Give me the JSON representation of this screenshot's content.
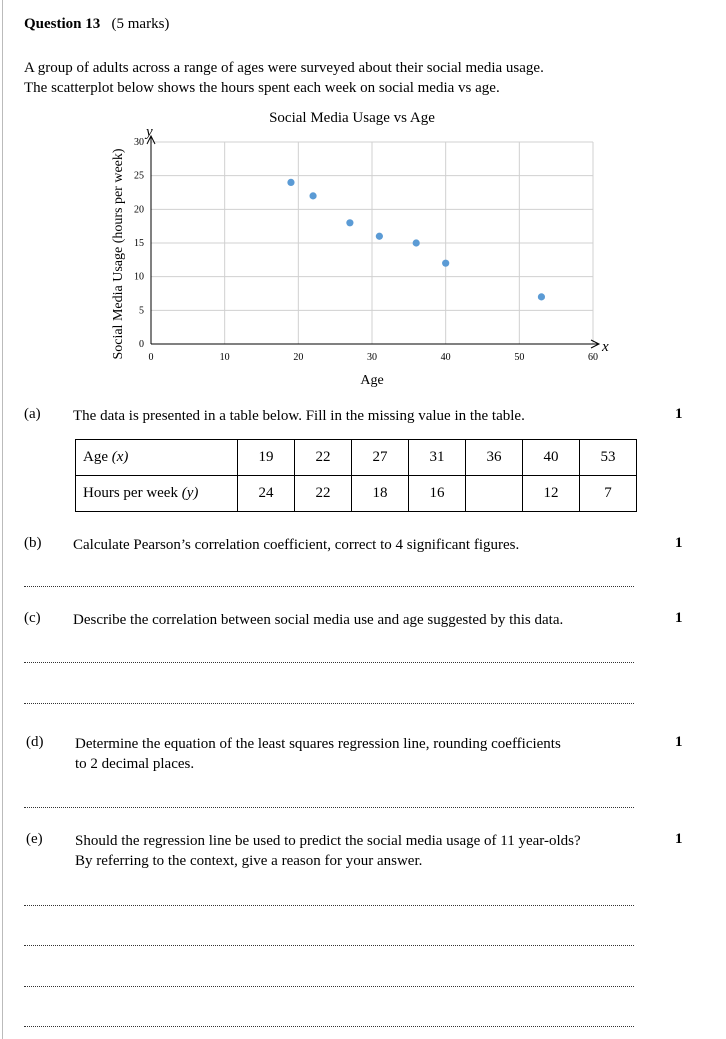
{
  "question": {
    "number_label": "Question 13",
    "marks_label": "(5 marks)",
    "intro_line1": "A group of adults across a range of ages were surveyed about their social media usage.",
    "intro_line2": "The scatterplot below shows the hours spent each week on social media vs age."
  },
  "chart_data": {
    "type": "scatter",
    "title": "Social Media Usage vs Age",
    "xlabel": "Age",
    "ylabel": "Social Media Usage (hours per week)",
    "x_axis_symbol": "x",
    "y_axis_symbol": "y",
    "xlim": [
      0,
      60
    ],
    "ylim": [
      0,
      30
    ],
    "x_ticks": [
      0,
      10,
      20,
      30,
      40,
      50,
      60
    ],
    "y_ticks": [
      0,
      5,
      10,
      15,
      20,
      25,
      30
    ],
    "grid": true,
    "point_color": "#5b9bd5",
    "x": [
      19,
      22,
      27,
      31,
      36,
      40,
      53
    ],
    "y": [
      24,
      22,
      18,
      16,
      15,
      12,
      7
    ]
  },
  "parts": {
    "a": {
      "label": "(a)",
      "text": "The data is presented in a table below.  Fill in the missing value in the table.",
      "marks": "1"
    },
    "b": {
      "label": "(b)",
      "text": "Calculate Pearson’s correlation coefficient, correct to 4 significant figures.",
      "marks": "1"
    },
    "c": {
      "label": "(c)",
      "text": "Describe the correlation between social media use and age suggested by this data.",
      "marks": "1"
    },
    "d": {
      "label": "(d)",
      "text_line1": "Determine the equation of the least squares regression line, rounding coefficients",
      "text_line2": "to 2 decimal places.",
      "marks": "1"
    },
    "e": {
      "label": "(e)",
      "text_line1": "Should the regression line be used to predict the social media usage of 11 year-olds?",
      "text_line2": "By referring to the context, give a reason for your answer.",
      "marks": "1"
    }
  },
  "table": {
    "row1_label": "Age",
    "row1_symbol": "(x)",
    "row2_label": "Hours per week",
    "row2_symbol": "(y)",
    "ages": [
      "19",
      "22",
      "27",
      "31",
      "36",
      "40",
      "53"
    ],
    "hours": [
      "24",
      "22",
      "18",
      "16",
      "",
      "12",
      "7"
    ]
  }
}
